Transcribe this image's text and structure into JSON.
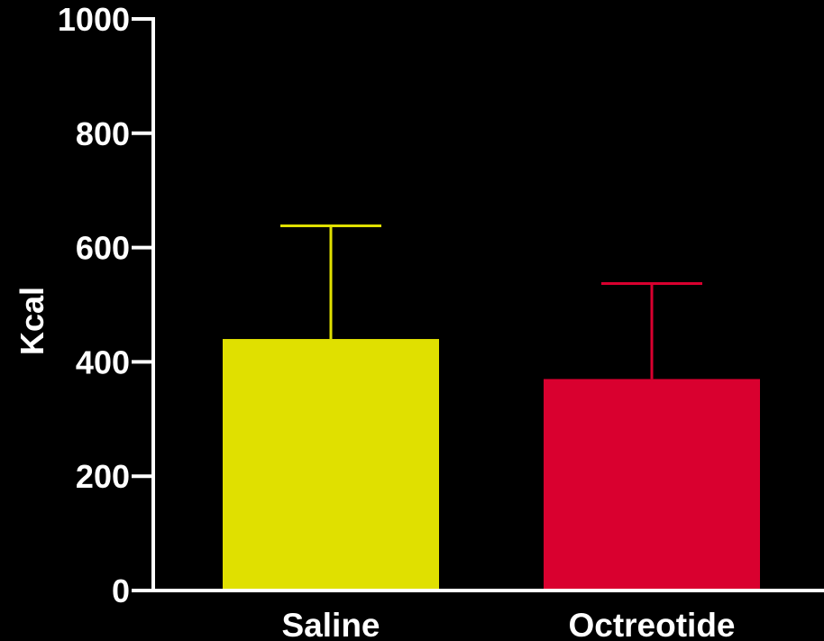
{
  "chart_data": {
    "type": "bar",
    "title": "",
    "xlabel": "",
    "ylabel": "Kcal",
    "ylim": [
      0,
      1000
    ],
    "yticks": [
      0,
      200,
      400,
      600,
      800,
      1000
    ],
    "ytick_labels": [
      "0",
      "200",
      "400",
      "600",
      "800",
      "1000"
    ],
    "categories": [
      "Saline",
      "Octreotide"
    ],
    "values": [
      440,
      370
    ],
    "error_upper": [
      638,
      537
    ],
    "colors": [
      "#e0e000",
      "#d9002f"
    ],
    "background": "#000000",
    "axis_color": "#ffffff",
    "grid": false,
    "legend": "none"
  }
}
